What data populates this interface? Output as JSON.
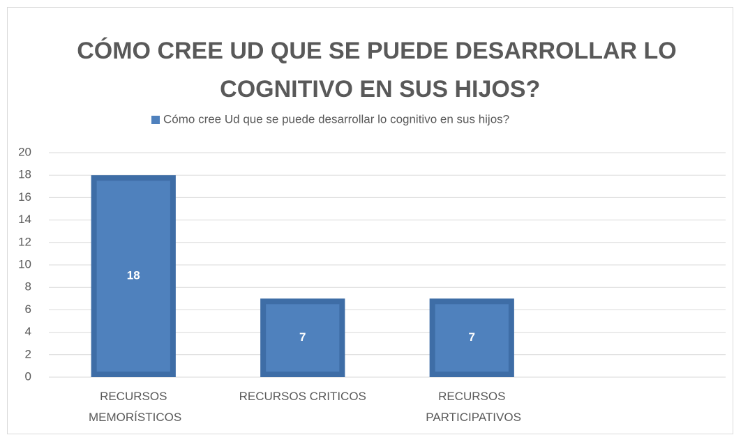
{
  "chart_data": {
    "type": "bar",
    "title": "CÓMO CREE UD QUE SE PUEDE DESARROLLAR LO COGNITIVO EN SUS HIJOS?",
    "categories": [
      "RECURSOS MEMORÍSTICOS",
      "RECURSOS CRITICOS",
      "RECURSOS PARTICIPATIVOS",
      null
    ],
    "series": [
      {
        "name": "Cómo cree Ud que se puede desarrollar lo cognitivo en sus hijos?",
        "color": "#4f81bd",
        "values": [
          18,
          7,
          7,
          null
        ]
      }
    ],
    "ylim": [
      0,
      20
    ],
    "yticks": [
      0,
      2,
      4,
      6,
      8,
      10,
      12,
      14,
      16,
      18,
      20
    ],
    "grid": true,
    "legend": "top"
  }
}
